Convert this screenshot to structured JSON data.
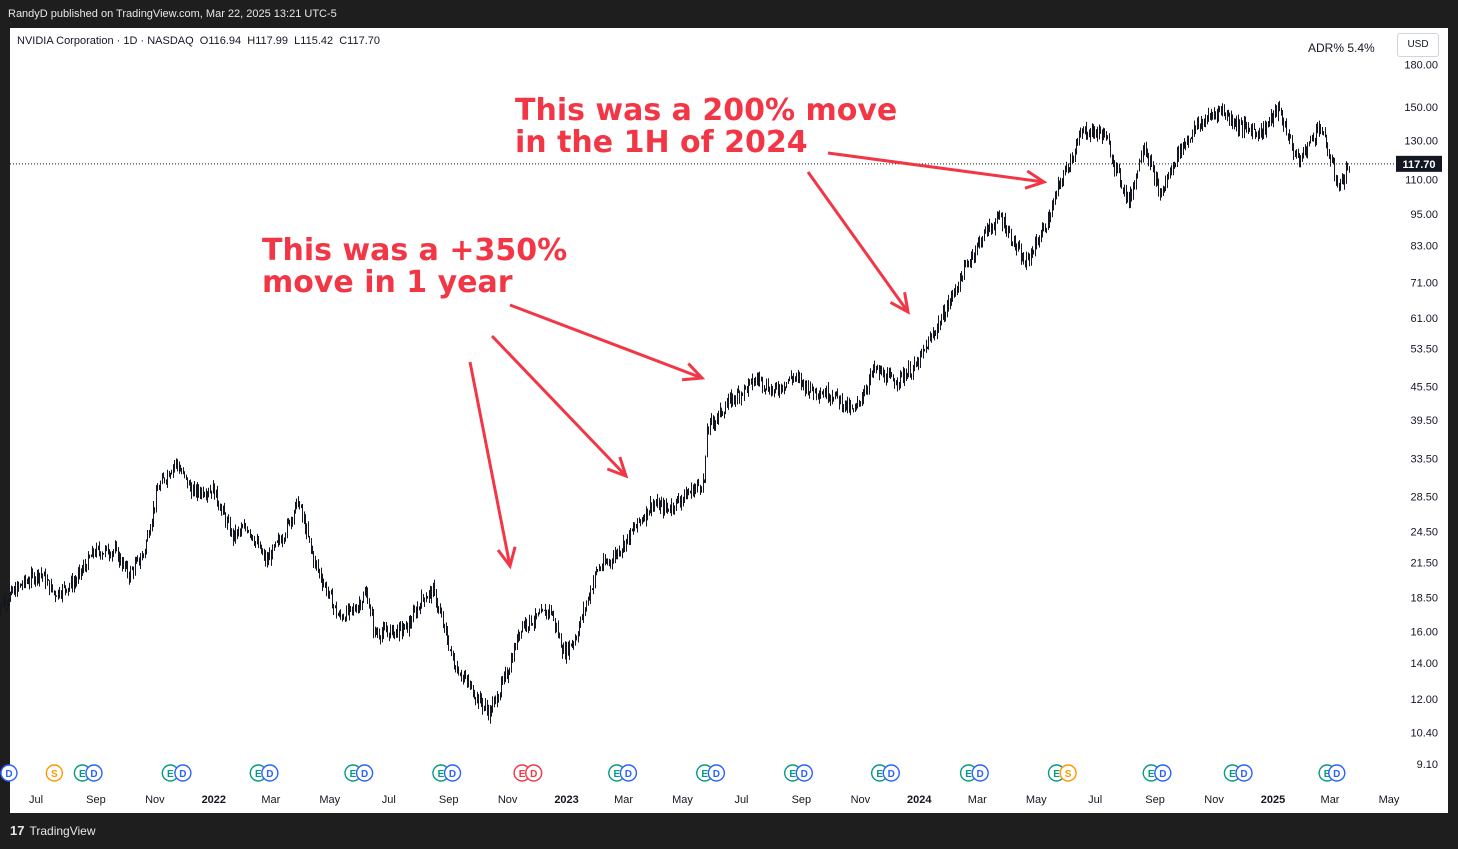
{
  "header": {
    "published": "RandyD published on TradingView.com, Mar 22, 2025 13:21 UTC-5",
    "legend": "NVIDIA Corporation · 1D · NASDAQ  O116.94  H117.99  L115.42  C117.70",
    "adr": "ADR%  5.4%",
    "currency": "USD"
  },
  "footer": {
    "brand": "TradingView",
    "logo_icon": "tradingview-logo-icon"
  },
  "annotations": [
    {
      "line1": "This was a 200% move",
      "line2": "in the 1H of 2024"
    },
    {
      "line1": "This was a +350%",
      "line2": "move in 1 year"
    }
  ],
  "colors": {
    "annotation": "#f23645",
    "candle": "#131722",
    "background": "#ffffff",
    "frame": "#1e1e1e"
  },
  "events": [
    {
      "label": "D",
      "color": "#2962ff",
      "x_date": "2021-06-03"
    },
    {
      "label": "S",
      "color": "#ff9800",
      "x_date": "2021-07-20"
    },
    {
      "label": "E",
      "color": "#089981",
      "x_date": "2021-08-18"
    },
    {
      "label": "D",
      "color": "#2962ff",
      "x_date": "2021-08-30"
    },
    {
      "label": "E",
      "color": "#089981",
      "x_date": "2021-11-17"
    },
    {
      "label": "D",
      "color": "#2962ff",
      "x_date": "2021-11-30"
    },
    {
      "label": "E",
      "color": "#089981",
      "x_date": "2022-02-16"
    },
    {
      "label": "D",
      "color": "#2962ff",
      "x_date": "2022-02-28"
    },
    {
      "label": "E",
      "color": "#089981",
      "x_date": "2022-05-25"
    },
    {
      "label": "D",
      "color": "#2962ff",
      "x_date": "2022-06-06"
    },
    {
      "label": "E",
      "color": "#089981",
      "x_date": "2022-08-24"
    },
    {
      "label": "D",
      "color": "#2962ff",
      "x_date": "2022-09-05"
    },
    {
      "label": "E",
      "color": "#f23645",
      "x_date": "2022-11-16"
    },
    {
      "label": "D",
      "color": "#f23645",
      "x_date": "2022-11-28"
    },
    {
      "label": "E",
      "color": "#089981",
      "x_date": "2023-02-22"
    },
    {
      "label": "D",
      "color": "#2962ff",
      "x_date": "2023-03-06"
    },
    {
      "label": "E",
      "color": "#089981",
      "x_date": "2023-05-24"
    },
    {
      "label": "D",
      "color": "#2962ff",
      "x_date": "2023-06-05"
    },
    {
      "label": "E",
      "color": "#089981",
      "x_date": "2023-08-23"
    },
    {
      "label": "D",
      "color": "#2962ff",
      "x_date": "2023-09-04"
    },
    {
      "label": "E",
      "color": "#089981",
      "x_date": "2023-11-21"
    },
    {
      "label": "D",
      "color": "#2962ff",
      "x_date": "2023-12-03"
    },
    {
      "label": "E",
      "color": "#089981",
      "x_date": "2024-02-21"
    },
    {
      "label": "D",
      "color": "#2962ff",
      "x_date": "2024-03-04"
    },
    {
      "label": "E",
      "color": "#089981",
      "x_date": "2024-05-22"
    },
    {
      "label": "S",
      "color": "#ff9800",
      "x_date": "2024-06-03"
    },
    {
      "label": "E",
      "color": "#089981",
      "x_date": "2024-08-28"
    },
    {
      "label": "D",
      "color": "#2962ff",
      "x_date": "2024-09-09"
    },
    {
      "label": "E",
      "color": "#089981",
      "x_date": "2024-11-20"
    },
    {
      "label": "D",
      "color": "#2962ff",
      "x_date": "2024-12-02"
    },
    {
      "label": "E",
      "color": "#089981",
      "x_date": "2025-02-26"
    },
    {
      "label": "D",
      "color": "#2962ff",
      "x_date": "2025-03-08"
    }
  ],
  "chart_data": {
    "type": "candlestick",
    "title": "NVIDIA Corporation · 1D · NASDAQ",
    "y_scale": "log",
    "y_ticks": [
      "180.00",
      "150.00",
      "130.00",
      "110.00",
      "95.00",
      "83.00",
      "71.00",
      "61.00",
      "53.50",
      "45.50",
      "39.50",
      "33.50",
      "28.50",
      "24.50",
      "21.50",
      "18.50",
      "16.00",
      "14.00",
      "12.00",
      "10.40",
      "9.10"
    ],
    "x_ticks": [
      {
        "label": "Jul",
        "date": "2021-07-01",
        "bold": false
      },
      {
        "label": "Sep",
        "date": "2021-09-01",
        "bold": false
      },
      {
        "label": "Nov",
        "date": "2021-11-01",
        "bold": false
      },
      {
        "label": "2022",
        "date": "2022-01-01",
        "bold": true
      },
      {
        "label": "Mar",
        "date": "2022-03-01",
        "bold": false
      },
      {
        "label": "May",
        "date": "2022-05-01",
        "bold": false
      },
      {
        "label": "Jul",
        "date": "2022-07-01",
        "bold": false
      },
      {
        "label": "Sep",
        "date": "2022-09-01",
        "bold": false
      },
      {
        "label": "Nov",
        "date": "2022-11-01",
        "bold": false
      },
      {
        "label": "2023",
        "date": "2023-01-01",
        "bold": true
      },
      {
        "label": "Mar",
        "date": "2023-03-01",
        "bold": false
      },
      {
        "label": "May",
        "date": "2023-05-01",
        "bold": false
      },
      {
        "label": "Jul",
        "date": "2023-07-01",
        "bold": false
      },
      {
        "label": "Sep",
        "date": "2023-09-01",
        "bold": false
      },
      {
        "label": "Nov",
        "date": "2023-11-01",
        "bold": false
      },
      {
        "label": "2024",
        "date": "2024-01-01",
        "bold": true
      },
      {
        "label": "Mar",
        "date": "2024-03-01",
        "bold": false
      },
      {
        "label": "May",
        "date": "2024-05-01",
        "bold": false
      },
      {
        "label": "Jul",
        "date": "2024-07-01",
        "bold": false
      },
      {
        "label": "Sep",
        "date": "2024-09-01",
        "bold": false
      },
      {
        "label": "Nov",
        "date": "2024-11-01",
        "bold": false
      },
      {
        "label": "2025",
        "date": "2025-01-01",
        "bold": true
      },
      {
        "label": "Mar",
        "date": "2025-03-01",
        "bold": false
      },
      {
        "label": "May",
        "date": "2025-05-01",
        "bold": false
      }
    ],
    "last_price": {
      "label": "117.70",
      "value": 117.7
    },
    "ohlc": {
      "open": 116.94,
      "high": 117.99,
      "low": 115.42,
      "close": 117.7
    },
    "price_path": [
      [
        "2021-05-20",
        17.6
      ],
      [
        "2021-06-15",
        19.5
      ],
      [
        "2021-07-05",
        20.6
      ],
      [
        "2021-07-20",
        18.8
      ],
      [
        "2021-08-10",
        19.8
      ],
      [
        "2021-08-30",
        22.5
      ],
      [
        "2021-09-20",
        22.6
      ],
      [
        "2021-10-05",
        20.4
      ],
      [
        "2021-10-20",
        22.3
      ],
      [
        "2021-11-04",
        29.5
      ],
      [
        "2021-11-22",
        33.0
      ],
      [
        "2021-12-10",
        29.0
      ],
      [
        "2021-12-31",
        29.4
      ],
      [
        "2022-01-20",
        24.0
      ],
      [
        "2022-02-05",
        25.0
      ],
      [
        "2022-02-24",
        21.5
      ],
      [
        "2022-03-15",
        24.5
      ],
      [
        "2022-03-29",
        27.9
      ],
      [
        "2022-04-15",
        21.5
      ],
      [
        "2022-05-10",
        17.0
      ],
      [
        "2022-05-25",
        17.5
      ],
      [
        "2022-06-08",
        18.9
      ],
      [
        "2022-06-16",
        15.9
      ],
      [
        "2022-07-08",
        16.0
      ],
      [
        "2022-07-20",
        16.3
      ],
      [
        "2022-08-05",
        18.5
      ],
      [
        "2022-08-16",
        19.0
      ],
      [
        "2022-09-06",
        14.0
      ],
      [
        "2022-09-30",
        12.1
      ],
      [
        "2022-10-13",
        11.3
      ],
      [
        "2022-11-01",
        13.5
      ],
      [
        "2022-11-15",
        16.5
      ],
      [
        "2022-11-30",
        16.9
      ],
      [
        "2022-12-15",
        17.6
      ],
      [
        "2022-12-29",
        14.6
      ],
      [
        "2023-01-10",
        15.6
      ],
      [
        "2023-02-01",
        20.8
      ],
      [
        "2023-02-15",
        21.7
      ],
      [
        "2023-03-01",
        23.3
      ],
      [
        "2023-03-30",
        27.6
      ],
      [
        "2023-04-15",
        27.0
      ],
      [
        "2023-05-24",
        30.5
      ],
      [
        "2023-05-26",
        38.0
      ],
      [
        "2023-06-20",
        43.0
      ],
      [
        "2023-07-18",
        47.2
      ],
      [
        "2023-08-03",
        44.5
      ],
      [
        "2023-08-23",
        47.5
      ],
      [
        "2023-09-10",
        45.0
      ],
      [
        "2023-10-04",
        44.0
      ],
      [
        "2023-10-25",
        40.7
      ],
      [
        "2023-11-15",
        49.0
      ],
      [
        "2023-12-05",
        46.5
      ],
      [
        "2023-12-28",
        49.5
      ],
      [
        "2024-01-25",
        61.5
      ],
      [
        "2024-02-22",
        78.5
      ],
      [
        "2024-03-08",
        87.5
      ],
      [
        "2024-03-25",
        94.0
      ],
      [
        "2024-04-19",
        76.5
      ],
      [
        "2024-05-15",
        94.0
      ],
      [
        "2024-05-23",
        106.0
      ],
      [
        "2024-06-18",
        135.5
      ],
      [
        "2024-07-10",
        134.0
      ],
      [
        "2024-07-25",
        112.0
      ],
      [
        "2024-08-05",
        100.0
      ],
      [
        "2024-08-20",
        129.0
      ],
      [
        "2024-09-06",
        102.5
      ],
      [
        "2024-09-25",
        124.0
      ],
      [
        "2024-10-14",
        138.0
      ],
      [
        "2024-11-07",
        148.8
      ],
      [
        "2024-11-28",
        138.0
      ],
      [
        "2024-12-20",
        134.5
      ],
      [
        "2025-01-06",
        149.0
      ],
      [
        "2025-01-27",
        118.5
      ],
      [
        "2025-02-18",
        139.0
      ],
      [
        "2025-03-10",
        106.5
      ],
      [
        "2025-03-21",
        117.7
      ]
    ]
  }
}
